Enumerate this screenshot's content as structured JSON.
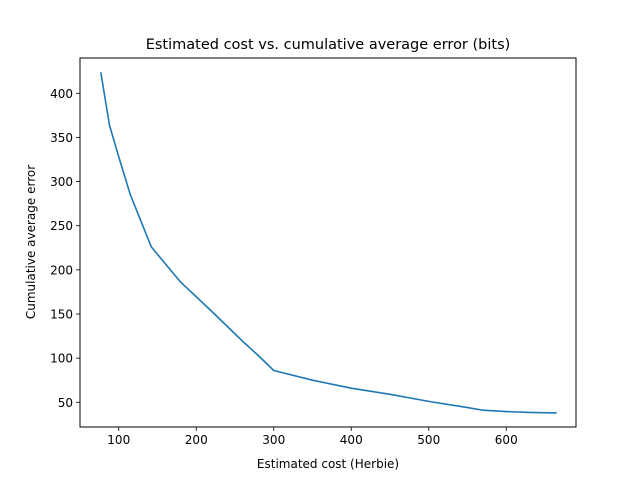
{
  "chart_data": {
    "type": "line",
    "title": "Estimated cost vs. cumulative average error (bits)",
    "xlabel": "Estimated cost (Herbie)",
    "ylabel": "Cumulative average error",
    "xlim": [
      50,
      690
    ],
    "ylim": [
      22,
      440
    ],
    "x_ticks": [
      100,
      200,
      300,
      400,
      500,
      600
    ],
    "y_ticks": [
      50,
      100,
      150,
      200,
      250,
      300,
      350,
      400
    ],
    "grid": false,
    "legend": "none",
    "series": [
      {
        "color": "#1f77b4",
        "points": [
          [
            77,
            423
          ],
          [
            88,
            364
          ],
          [
            100,
            328
          ],
          [
            115,
            285
          ],
          [
            142,
            226
          ],
          [
            180,
            186
          ],
          [
            220,
            153
          ],
          [
            260,
            119
          ],
          [
            280,
            103
          ],
          [
            300,
            86
          ],
          [
            350,
            75
          ],
          [
            400,
            66
          ],
          [
            450,
            59
          ],
          [
            500,
            51
          ],
          [
            550,
            44
          ],
          [
            570,
            41
          ],
          [
            600,
            39.5
          ],
          [
            630,
            38.5
          ],
          [
            664,
            38
          ]
        ]
      }
    ]
  }
}
